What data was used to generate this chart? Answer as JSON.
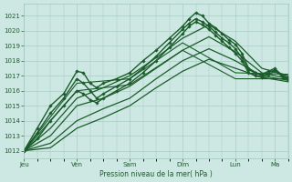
{
  "bg_color": "#cde8e2",
  "grid_color": "#9ec8bc",
  "line_color": "#1a5c2a",
  "xlabel": "Pression niveau de la mer( hPa )",
  "ylim": [
    1011.5,
    1021.8
  ],
  "yticks": [
    1012,
    1013,
    1014,
    1015,
    1016,
    1017,
    1018,
    1019,
    1020,
    1021
  ],
  "day_labels": [
    "Jeu",
    "Ven",
    "Sam",
    "Dim",
    "Lun",
    "Ma"
  ],
  "day_positions": [
    0,
    24,
    48,
    72,
    96,
    114
  ],
  "xlim": [
    0,
    120
  ],
  "series": [
    {
      "x": [
        0,
        6,
        12,
        18,
        24,
        27,
        30,
        33,
        36,
        42,
        48,
        54,
        60,
        66,
        72,
        75,
        78,
        81,
        84,
        87,
        90,
        93,
        96,
        99,
        102,
        105,
        108,
        111,
        114,
        117,
        120
      ],
      "y": [
        1012,
        1013.5,
        1015.0,
        1015.8,
        1017.3,
        1017.2,
        1016.5,
        1016.2,
        1016.5,
        1016.8,
        1017.2,
        1018.0,
        1018.7,
        1019.5,
        1020.3,
        1020.8,
        1021.2,
        1021.0,
        1020.5,
        1020.2,
        1019.8,
        1019.4,
        1019.1,
        1018.5,
        1017.5,
        1017.2,
        1017.1,
        1017.3,
        1017.5,
        1017.0,
        1016.9
      ],
      "marker": "D",
      "lw": 1.0
    },
    {
      "x": [
        0,
        6,
        12,
        18,
        24,
        27,
        30,
        33,
        36,
        42,
        48,
        54,
        60,
        66,
        72,
        75,
        78,
        81,
        84,
        87,
        90,
        93,
        96,
        99,
        102,
        105,
        108,
        111,
        114,
        117,
        120
      ],
      "y": [
        1012,
        1013.2,
        1014.5,
        1015.5,
        1016.8,
        1016.5,
        1016.0,
        1015.5,
        1015.8,
        1016.3,
        1016.8,
        1017.5,
        1018.3,
        1019.2,
        1020.1,
        1020.5,
        1020.8,
        1020.6,
        1020.3,
        1019.9,
        1019.5,
        1019.2,
        1018.8,
        1018.2,
        1017.4,
        1017.2,
        1017.0,
        1017.2,
        1017.4,
        1017.1,
        1016.8
      ],
      "marker": "D",
      "lw": 1.0
    },
    {
      "x": [
        0,
        6,
        12,
        18,
        24,
        27,
        30,
        33,
        36,
        42,
        48,
        54,
        60,
        66,
        72,
        75,
        78,
        81,
        84,
        87,
        90,
        93,
        96,
        99,
        102,
        105,
        108,
        111,
        114,
        117,
        120
      ],
      "y": [
        1012,
        1012.8,
        1014.0,
        1015.0,
        1016.0,
        1015.8,
        1015.4,
        1015.2,
        1015.5,
        1016.0,
        1016.5,
        1017.2,
        1018.0,
        1018.9,
        1019.8,
        1020.3,
        1020.6,
        1020.4,
        1020.1,
        1019.7,
        1019.3,
        1018.9,
        1018.5,
        1018.0,
        1017.2,
        1017.0,
        1016.9,
        1017.1,
        1017.3,
        1017.0,
        1016.7
      ],
      "marker": "D",
      "lw": 1.0
    },
    {
      "x": [
        0,
        12,
        24,
        36,
        48,
        60,
        72,
        84,
        96,
        108,
        120
      ],
      "y": [
        1012,
        1013.5,
        1015.5,
        1016.2,
        1017.0,
        1018.2,
        1019.5,
        1020.4,
        1019.3,
        1017.5,
        1017.0
      ],
      "marker": null,
      "lw": 0.9
    },
    {
      "x": [
        0,
        12,
        24,
        36,
        48,
        60,
        72,
        84,
        96,
        108,
        120
      ],
      "y": [
        1012,
        1013.0,
        1015.0,
        1015.5,
        1016.3,
        1017.5,
        1018.7,
        1019.6,
        1018.6,
        1017.2,
        1016.8
      ],
      "marker": null,
      "lw": 0.9
    },
    {
      "x": [
        0,
        12,
        24,
        36,
        48,
        60,
        72,
        84,
        96,
        108,
        120
      ],
      "y": [
        1012,
        1012.5,
        1014.0,
        1014.8,
        1015.5,
        1016.8,
        1018.0,
        1018.8,
        1018.0,
        1017.0,
        1016.7
      ],
      "marker": null,
      "lw": 0.9
    },
    {
      "x": [
        0,
        12,
        24,
        36,
        48,
        60,
        72,
        84,
        96,
        108,
        120
      ],
      "y": [
        1012,
        1012.2,
        1013.5,
        1014.2,
        1015.0,
        1016.2,
        1017.3,
        1018.1,
        1017.5,
        1016.9,
        1016.6
      ],
      "marker": null,
      "lw": 0.9
    },
    {
      "x": [
        0,
        24,
        48,
        72,
        96,
        120
      ],
      "y": [
        1012,
        1016.5,
        1016.8,
        1019.2,
        1017.2,
        1017.1
      ],
      "marker": null,
      "lw": 0.8
    },
    {
      "x": [
        0,
        24,
        48,
        72,
        96,
        120
      ],
      "y": [
        1012,
        1016.0,
        1016.4,
        1018.7,
        1016.8,
        1016.8
      ],
      "marker": null,
      "lw": 0.8
    }
  ]
}
